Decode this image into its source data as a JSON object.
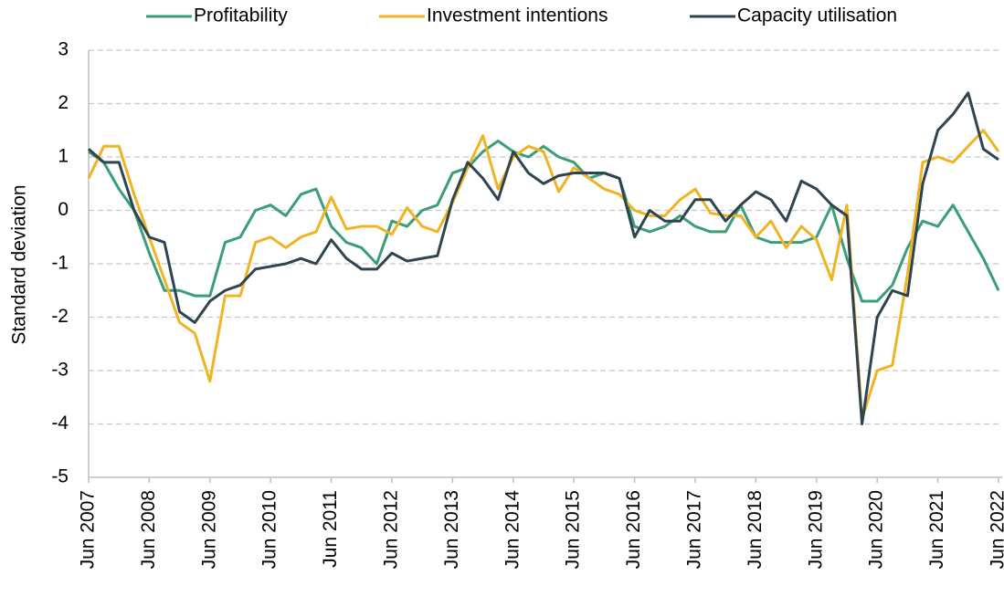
{
  "chart_data": {
    "type": "line",
    "y_label": "Standard deviation",
    "categories": [
      "Jun 2007",
      null,
      null,
      null,
      "Jun 2008",
      null,
      null,
      null,
      "Jun 2009",
      null,
      null,
      null,
      "Jun 2010",
      null,
      null,
      null,
      "Jun 2011",
      null,
      null,
      null,
      "Jun 2012",
      null,
      null,
      null,
      "Jun 2013",
      null,
      null,
      null,
      "Jun 2014",
      null,
      null,
      null,
      "Jun 2015",
      null,
      null,
      null,
      "Jun 2016",
      null,
      null,
      null,
      "Jun 2017",
      null,
      null,
      null,
      "Jun 2018",
      null,
      null,
      null,
      "Jun 2019",
      null,
      null,
      null,
      "Jun 2020",
      null,
      null,
      null,
      "Jun 2021",
      null,
      null,
      null,
      "Jun 2022"
    ],
    "series": [
      {
        "name": "Profitability",
        "color": "#3a9e78",
        "values": [
          1.1,
          0.9,
          0.4,
          0.0,
          -0.8,
          -1.5,
          -1.5,
          -1.6,
          -1.6,
          -0.6,
          -0.5,
          0.0,
          0.1,
          -0.1,
          0.3,
          0.4,
          -0.3,
          -0.6,
          -0.7,
          -1.0,
          -0.2,
          -0.3,
          0.0,
          0.1,
          0.7,
          0.8,
          1.1,
          1.3,
          1.1,
          1.0,
          1.2,
          1.0,
          0.9,
          0.6,
          0.7,
          0.6,
          -0.3,
          -0.4,
          -0.3,
          -0.1,
          -0.3,
          -0.4,
          -0.4,
          0.1,
          -0.5,
          -0.6,
          -0.6,
          -0.6,
          -0.5,
          0.1,
          -0.9,
          -1.7,
          -1.7,
          -1.4,
          -0.7,
          -0.2,
          -0.3,
          0.1,
          -0.4,
          -0.9,
          -1.5
        ]
      },
      {
        "name": "Investment intentions",
        "color": "#f0b323",
        "values": [
          0.6,
          1.2,
          1.2,
          0.3,
          -0.5,
          -1.3,
          -2.1,
          -2.3,
          -3.2,
          -1.6,
          -1.6,
          -0.6,
          -0.5,
          -0.7,
          -0.5,
          -0.4,
          0.25,
          -0.35,
          -0.3,
          -0.3,
          -0.45,
          0.05,
          -0.3,
          -0.4,
          0.15,
          0.8,
          1.4,
          0.4,
          1.0,
          1.2,
          1.1,
          0.35,
          0.8,
          0.6,
          0.4,
          0.3,
          0.0,
          -0.1,
          -0.1,
          0.2,
          0.4,
          -0.05,
          -0.1,
          -0.1,
          -0.5,
          -0.2,
          -0.7,
          -0.3,
          -0.55,
          -1.3,
          0.1,
          -3.9,
          -3.0,
          -2.9,
          -1.2,
          0.9,
          1.0,
          0.9,
          1.2,
          1.5,
          1.1
        ]
      },
      {
        "name": "Capacity utilisation",
        "color": "#2e4450",
        "values": [
          1.15,
          0.9,
          0.9,
          0.0,
          -0.5,
          -0.6,
          -1.9,
          -2.1,
          -1.7,
          -1.5,
          -1.4,
          -1.1,
          -1.05,
          -1.0,
          -0.9,
          -1.0,
          -0.55,
          -0.9,
          -1.1,
          -1.1,
          -0.8,
          -0.95,
          -0.9,
          -0.85,
          0.2,
          0.9,
          0.6,
          0.2,
          1.1,
          0.7,
          0.5,
          0.65,
          0.7,
          0.7,
          0.7,
          0.6,
          -0.5,
          0.0,
          -0.2,
          -0.2,
          0.2,
          0.2,
          -0.2,
          0.1,
          0.35,
          0.2,
          -0.2,
          0.55,
          0.4,
          0.1,
          -0.1,
          -4.0,
          -2.0,
          -1.5,
          -1.6,
          0.5,
          1.5,
          1.8,
          2.2,
          1.15,
          0.95
        ]
      }
    ],
    "ylim": [
      -5,
      3
    ],
    "yticks": [
      -5,
      -4,
      -3,
      -2,
      -1,
      0,
      1,
      2,
      3
    ],
    "grid": true,
    "legend": "top"
  }
}
